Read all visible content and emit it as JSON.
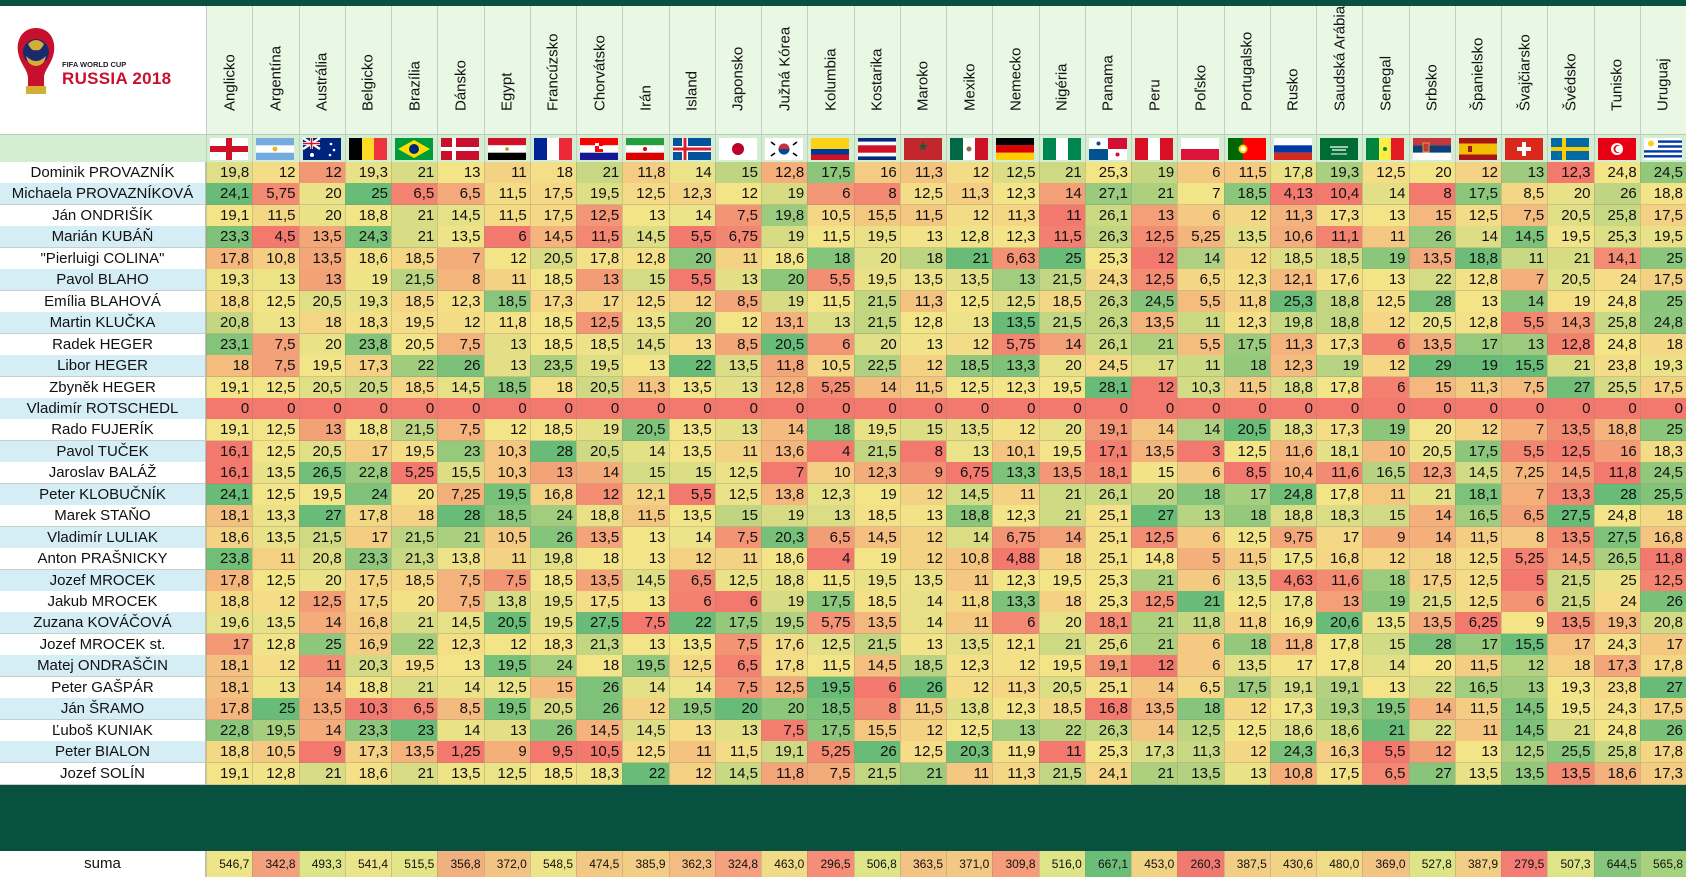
{
  "logo": {
    "line1": "FIFA WORLD CUP",
    "line2": "RUSSIA 2018"
  },
  "teams": [
    {
      "name": "Anglicko",
      "flag": "england-flag"
    },
    {
      "name": "Argentína",
      "flag": "argentina-flag"
    },
    {
      "name": "Austrália",
      "flag": "australia-flag"
    },
    {
      "name": "Belgicko",
      "flag": "belgium-flag"
    },
    {
      "name": "Brazília",
      "flag": "brazil-flag"
    },
    {
      "name": "Dánsko",
      "flag": "denmark-flag"
    },
    {
      "name": "Egypt",
      "flag": "egypt-flag"
    },
    {
      "name": "Francúzsko",
      "flag": "france-flag"
    },
    {
      "name": "Chorvátsko",
      "flag": "croatia-flag"
    },
    {
      "name": "Irán",
      "flag": "iran-flag"
    },
    {
      "name": "Island",
      "flag": "iceland-flag"
    },
    {
      "name": "Japonsko",
      "flag": "japan-flag"
    },
    {
      "name": "Južná Kórea",
      "flag": "south-korea-flag"
    },
    {
      "name": "Kolumbia",
      "flag": "colombia-flag"
    },
    {
      "name": "Kostarika",
      "flag": "costa-rica-flag"
    },
    {
      "name": "Maroko",
      "flag": "morocco-flag"
    },
    {
      "name": "Mexiko",
      "flag": "mexico-flag"
    },
    {
      "name": "Nemecko",
      "flag": "germany-flag"
    },
    {
      "name": "Nigéria",
      "flag": "nigeria-flag"
    },
    {
      "name": "Panama",
      "flag": "panama-flag"
    },
    {
      "name": "Peru",
      "flag": "peru-flag"
    },
    {
      "name": "Poľsko",
      "flag": "poland-flag"
    },
    {
      "name": "Portugalsko",
      "flag": "portugal-flag"
    },
    {
      "name": "Rusko",
      "flag": "russia-flag"
    },
    {
      "name": "Saudská Arábia",
      "flag": "saudi-arabia-flag"
    },
    {
      "name": "Senegal",
      "flag": "senegal-flag"
    },
    {
      "name": "Srbsko",
      "flag": "serbia-flag"
    },
    {
      "name": "Španielsko",
      "flag": "spain-flag"
    },
    {
      "name": "Švajčiarsko",
      "flag": "switzerland-flag"
    },
    {
      "name": "Švédsko",
      "flag": "sweden-flag"
    },
    {
      "name": "Tunisko",
      "flag": "tunisia-flag"
    },
    {
      "name": "Uruguaj",
      "flag": "uruguay-flag"
    }
  ],
  "rows": [
    {
      "name": "Dominik PROVAZNÍK",
      "values": [
        "19,8",
        "12",
        "12",
        "19,3",
        "21",
        "13",
        "11",
        "18",
        "21",
        "11,8",
        "14",
        "15",
        "12,8",
        "17,5",
        "16",
        "11,3",
        "12",
        "12,5",
        "21",
        "25,3",
        "19",
        "6",
        "11,5",
        "17,8",
        "19,3",
        "12,5",
        "20",
        "12",
        "13",
        "12,3",
        "24,8",
        "24,5"
      ]
    },
    {
      "name": "Michaela PROVAZNÍKOVÁ",
      "values": [
        "24,1",
        "5,75",
        "20",
        "25",
        "6,5",
        "6,5",
        "11,5",
        "17,5",
        "19,5",
        "12,5",
        "12,3",
        "12",
        "19",
        "6",
        "8",
        "12,5",
        "11,3",
        "12,3",
        "14",
        "27,1",
        "21",
        "7",
        "18,5",
        "4,13",
        "10,4",
        "14",
        "8",
        "17,5",
        "8,5",
        "20",
        "26",
        "18,8"
      ]
    },
    {
      "name": "Ján ONDRIŠÍK",
      "values": [
        "19,1",
        "11,5",
        "20",
        "18,8",
        "21",
        "14,5",
        "11,5",
        "17,5",
        "12,5",
        "13",
        "14",
        "7,5",
        "19,8",
        "10,5",
        "15,5",
        "11,5",
        "12",
        "11,3",
        "11",
        "26,1",
        "13",
        "6",
        "12",
        "11,3",
        "17,3",
        "13",
        "15",
        "12,5",
        "7,5",
        "20,5",
        "25,8",
        "17,5"
      ]
    },
    {
      "name": "Marián KUBÁŇ",
      "values": [
        "23,3",
        "4,5",
        "13,5",
        "24,3",
        "21",
        "13,5",
        "6",
        "14,5",
        "11,5",
        "14,5",
        "5,5",
        "6,75",
        "19",
        "11,5",
        "19,5",
        "13",
        "12,8",
        "12,3",
        "11,5",
        "26,3",
        "12,5",
        "5,25",
        "13,5",
        "10,6",
        "11,1",
        "11",
        "26",
        "14",
        "14,5",
        "19,5",
        "25,3",
        "19,5"
      ]
    },
    {
      "name": "\"Pierluigi COLINA\"",
      "values": [
        "17,8",
        "10,8",
        "13,5",
        "18,6",
        "18,5",
        "7",
        "12",
        "20,5",
        "17,8",
        "12,8",
        "20",
        "11",
        "18,6",
        "18",
        "20",
        "18",
        "21",
        "6,63",
        "25",
        "25,3",
        "12",
        "14",
        "12",
        "18,5",
        "18,5",
        "19",
        "13,5",
        "18,8",
        "11",
        "21",
        "14,1",
        "25"
      ]
    },
    {
      "name": "Pavol BLAHO",
      "values": [
        "19,3",
        "13",
        "13",
        "19",
        "21,5",
        "8",
        "11",
        "18,5",
        "13",
        "15",
        "5,5",
        "13",
        "20",
        "5,5",
        "19,5",
        "13,5",
        "13,5",
        "13",
        "21,5",
        "24,3",
        "12,5",
        "6,5",
        "12,3",
        "12,1",
        "17,6",
        "13",
        "22",
        "12,8",
        "7",
        "20,5",
        "24",
        "17,5"
      ]
    },
    {
      "name": "Emília BLAHOVÁ",
      "values": [
        "18,8",
        "12,5",
        "20,5",
        "19,3",
        "18,5",
        "12,3",
        "18,5",
        "17,3",
        "17",
        "12,5",
        "12",
        "8,5",
        "19",
        "11,5",
        "21,5",
        "11,3",
        "12,5",
        "12,5",
        "18,5",
        "26,3",
        "24,5",
        "5,5",
        "11,8",
        "25,3",
        "18,8",
        "12,5",
        "28",
        "13",
        "14",
        "19",
        "24,8",
        "25"
      ]
    },
    {
      "name": "Martin KLUČKA",
      "values": [
        "20,8",
        "13",
        "18",
        "18,3",
        "19,5",
        "12",
        "11,8",
        "18,5",
        "12,5",
        "13,5",
        "20",
        "12",
        "13,1",
        "13",
        "21,5",
        "12,8",
        "13",
        "13,5",
        "21,5",
        "26,3",
        "13,5",
        "11",
        "12,3",
        "19,8",
        "18,8",
        "12",
        "20,5",
        "12,8",
        "5,5",
        "14,3",
        "25,8",
        "24,8"
      ]
    },
    {
      "name": "Radek HEGER",
      "values": [
        "23,1",
        "7,5",
        "20",
        "23,8",
        "20,5",
        "7,5",
        "13",
        "18,5",
        "18,5",
        "14,5",
        "13",
        "8,5",
        "20,5",
        "6",
        "20",
        "13",
        "12",
        "5,75",
        "14",
        "26,1",
        "21",
        "5,5",
        "17,5",
        "11,3",
        "17,3",
        "6",
        "13,5",
        "17",
        "13",
        "12,8",
        "24,8",
        "18"
      ]
    },
    {
      "name": "Libor HEGER",
      "values": [
        "18",
        "7,5",
        "19,5",
        "17,3",
        "22",
        "26",
        "13",
        "23,5",
        "19,5",
        "13",
        "22",
        "13,5",
        "11,8",
        "10,5",
        "22,5",
        "12",
        "18,5",
        "13,3",
        "20",
        "24,5",
        "17",
        "11",
        "18",
        "12,3",
        "19",
        "12",
        "29",
        "19",
        "15,5",
        "21",
        "23,8",
        "19,3"
      ]
    },
    {
      "name": "Zbyněk HEGER",
      "values": [
        "19,1",
        "12,5",
        "20,5",
        "20,5",
        "18,5",
        "14,5",
        "18,5",
        "18",
        "20,5",
        "11,3",
        "13,5",
        "13",
        "12,8",
        "5,25",
        "14",
        "11,5",
        "12,5",
        "12,3",
        "19,5",
        "28,1",
        "12",
        "10,3",
        "11,5",
        "18,8",
        "17,8",
        "6",
        "15",
        "11,3",
        "7,5",
        "27",
        "25,5",
        "17,5"
      ]
    },
    {
      "name": "Vladimír ROTSCHEDL",
      "values": [
        "0",
        "0",
        "0",
        "0",
        "0",
        "0",
        "0",
        "0",
        "0",
        "0",
        "0",
        "0",
        "0",
        "0",
        "0",
        "0",
        "0",
        "0",
        "0",
        "0",
        "0",
        "0",
        "0",
        "0",
        "0",
        "0",
        "0",
        "0",
        "0",
        "0",
        "0",
        "0"
      ]
    },
    {
      "name": "Rado FUJERÍK",
      "values": [
        "19,1",
        "12,5",
        "13",
        "18,8",
        "21,5",
        "7,5",
        "12",
        "18,5",
        "19",
        "20,5",
        "13,5",
        "13",
        "14",
        "18",
        "19,5",
        "15",
        "13,5",
        "12",
        "20",
        "19,1",
        "14",
        "14",
        "20,5",
        "18,3",
        "17,3",
        "19",
        "20",
        "12",
        "7",
        "13,5",
        "18,8",
        "25"
      ]
    },
    {
      "name": "Pavol TUČEK",
      "values": [
        "16,1",
        "12,5",
        "20,5",
        "17",
        "19,5",
        "23",
        "10,3",
        "28",
        "20,5",
        "14",
        "13,5",
        "11",
        "13,6",
        "4",
        "21,5",
        "8",
        "13",
        "10,1",
        "19,5",
        "17,1",
        "13,5",
        "3",
        "12,5",
        "11,6",
        "18,1",
        "10",
        "20,5",
        "17,5",
        "5,5",
        "12,5",
        "16",
        "18,3"
      ]
    },
    {
      "name": "Jaroslav BALÁŽ",
      "values": [
        "16,1",
        "13,5",
        "26,5",
        "22,8",
        "5,25",
        "15,5",
        "10,3",
        "13",
        "14",
        "15",
        "15",
        "12,5",
        "7",
        "10",
        "12,3",
        "9",
        "6,75",
        "13,3",
        "13,5",
        "18,1",
        "15",
        "6",
        "8,5",
        "10,4",
        "11,6",
        "16,5",
        "12,3",
        "14,5",
        "7,25",
        "14,5",
        "11,8",
        "24,5"
      ]
    },
    {
      "name": "Peter KLOBUČNÍK",
      "values": [
        "24,1",
        "12,5",
        "19,5",
        "24",
        "20",
        "7,25",
        "19,5",
        "16,8",
        "12",
        "12,1",
        "5,5",
        "12,5",
        "13,8",
        "12,3",
        "19",
        "12",
        "14,5",
        "11",
        "21",
        "26,1",
        "20",
        "18",
        "17",
        "24,8",
        "17,8",
        "11",
        "21",
        "18,1",
        "7",
        "13,3",
        "28",
        "25,5"
      ]
    },
    {
      "name": "Marek STAŇO",
      "values": [
        "18,1",
        "13,3",
        "27",
        "17,8",
        "18",
        "28",
        "18,5",
        "24",
        "18,8",
        "11,5",
        "13,5",
        "15",
        "19",
        "13",
        "18,5",
        "13",
        "18,8",
        "12,3",
        "21",
        "25,1",
        "27",
        "13",
        "18",
        "18,8",
        "18,3",
        "15",
        "14",
        "16,5",
        "6,5",
        "27,5",
        "24,8",
        "18"
      ]
    },
    {
      "name": "Vladimír LULIAK",
      "values": [
        "18,6",
        "13,5",
        "21,5",
        "17",
        "21,5",
        "21",
        "10,5",
        "26",
        "13,5",
        "13",
        "14",
        "7,5",
        "20,3",
        "6,5",
        "14,5",
        "12",
        "14",
        "6,75",
        "14",
        "25,1",
        "12,5",
        "6",
        "12,5",
        "9,75",
        "17",
        "9",
        "14",
        "11,5",
        "8",
        "13,5",
        "27,5",
        "16,8"
      ]
    },
    {
      "name": "Anton PRAŠNICKY",
      "values": [
        "23,8",
        "11",
        "20,8",
        "23,3",
        "21,3",
        "13,8",
        "11",
        "19,8",
        "18",
        "13",
        "12",
        "11",
        "18,6",
        "4",
        "19",
        "12",
        "10,8",
        "4,88",
        "18",
        "25,1",
        "14,8",
        "5",
        "11,5",
        "17,5",
        "16,8",
        "12",
        "18",
        "12,5",
        "5,25",
        "14,5",
        "26,5",
        "11,8"
      ]
    },
    {
      "name": "Jozef MROCEK",
      "values": [
        "17,8",
        "12,5",
        "20",
        "17,5",
        "18,5",
        "7,5",
        "7,5",
        "18,5",
        "13,5",
        "14,5",
        "6,5",
        "12,5",
        "18,8",
        "11,5",
        "19,5",
        "13,5",
        "11",
        "12,3",
        "19,5",
        "25,3",
        "21",
        "6",
        "13,5",
        "4,63",
        "11,6",
        "18",
        "17,5",
        "12,5",
        "5",
        "21,5",
        "25",
        "12,5"
      ]
    },
    {
      "name": "Jakub MROCEK",
      "values": [
        "18,8",
        "12",
        "12,5",
        "17,5",
        "20",
        "7,5",
        "13,8",
        "19,5",
        "17,5",
        "13",
        "6",
        "6",
        "19",
        "17,5",
        "18,5",
        "14",
        "11,8",
        "13,3",
        "18",
        "25,3",
        "12,5",
        "21",
        "12,5",
        "17,8",
        "13",
        "19",
        "21,5",
        "12,5",
        "6",
        "21,5",
        "24",
        "26"
      ]
    },
    {
      "name": "Zuzana KOVÁČOVÁ",
      "values": [
        "19,6",
        "13,5",
        "14",
        "16,8",
        "21",
        "14,5",
        "20,5",
        "19,5",
        "27,5",
        "7,5",
        "22",
        "17,5",
        "19,5",
        "5,75",
        "13,5",
        "14",
        "11",
        "6",
        "20",
        "18,1",
        "21",
        "11,8",
        "11,8",
        "16,9",
        "20,6",
        "13,5",
        "13,5",
        "6,25",
        "9",
        "13,5",
        "19,3",
        "20,8"
      ]
    },
    {
      "name": "Jozef MROCEK st.",
      "values": [
        "17",
        "12,8",
        "25",
        "16,9",
        "22",
        "12,3",
        "12",
        "18,3",
        "21,3",
        "13",
        "13,5",
        "7,5",
        "17,6",
        "12,5",
        "21,5",
        "13",
        "13,5",
        "12,1",
        "21",
        "25,6",
        "21",
        "6",
        "18",
        "11,8",
        "17,8",
        "15",
        "28",
        "17",
        "15,5",
        "17",
        "24,3",
        "17"
      ]
    },
    {
      "name": "Matej ONDRAŠČIN",
      "values": [
        "18,1",
        "12",
        "11",
        "20,3",
        "19,5",
        "13",
        "19,5",
        "24",
        "18",
        "19,5",
        "12,5",
        "6,5",
        "17,8",
        "11,5",
        "14,5",
        "18,5",
        "12,3",
        "12",
        "19,5",
        "19,1",
        "12",
        "6",
        "13,5",
        "17",
        "17,8",
        "14",
        "20",
        "11,5",
        "12",
        "18",
        "17,3",
        "17,8"
      ]
    },
    {
      "name": "Peter GAŠPÁR",
      "values": [
        "18,1",
        "13",
        "14",
        "18,8",
        "21",
        "14",
        "12,5",
        "15",
        "26",
        "14",
        "14",
        "7,5",
        "12,5",
        "19,5",
        "6",
        "26",
        "12",
        "11,3",
        "20,5",
        "25,1",
        "14",
        "6,5",
        "17,5",
        "19,1",
        "19,1",
        "13",
        "22",
        "16,5",
        "13",
        "19,3",
        "23,8",
        "27"
      ]
    },
    {
      "name": "Ján ŠRAMO",
      "values": [
        "17,8",
        "25",
        "13,5",
        "10,3",
        "6,5",
        "8,5",
        "19,5",
        "20,5",
        "26",
        "12",
        "19,5",
        "20",
        "20",
        "18,5",
        "8",
        "11,5",
        "13,8",
        "12,3",
        "18,5",
        "16,8",
        "13,5",
        "18",
        "12",
        "17,3",
        "19,3",
        "19,5",
        "14",
        "11,5",
        "14,5",
        "19,5",
        "24,3",
        "17,5"
      ]
    },
    {
      "name": "Ľuboš KUNIAK",
      "values": [
        "22,8",
        "19,5",
        "14",
        "23,3",
        "23",
        "14",
        "13",
        "26",
        "14,5",
        "14,5",
        "13",
        "13",
        "7,5",
        "17,5",
        "15,5",
        "12",
        "12,5",
        "13",
        "22",
        "26,3",
        "14",
        "12,5",
        "12,5",
        "18,6",
        "18,6",
        "21",
        "22",
        "11",
        "14,5",
        "21",
        "24,8",
        "26"
      ]
    },
    {
      "name": "Peter BIALON",
      "values": [
        "18,8",
        "10,5",
        "9",
        "17,3",
        "13,5",
        "1,25",
        "9",
        "9,5",
        "10,5",
        "12,5",
        "11",
        "11,5",
        "19,1",
        "5,25",
        "26",
        "12,5",
        "20,3",
        "11,9",
        "11",
        "25,3",
        "17,3",
        "11,3",
        "12",
        "24,3",
        "16,3",
        "5,5",
        "12",
        "13",
        "12,5",
        "25,5",
        "25,8",
        "17,8"
      ]
    },
    {
      "name": "Jozef SOLÍN",
      "values": [
        "19,1",
        "12,8",
        "21",
        "18,6",
        "21",
        "13,5",
        "12,5",
        "18,5",
        "18,3",
        "22",
        "12",
        "14,5",
        "11,8",
        "7,5",
        "21,5",
        "21",
        "11",
        "11,3",
        "21,5",
        "24,1",
        "21",
        "13,5",
        "13",
        "10,8",
        "17,5",
        "6,5",
        "27",
        "13,5",
        "13,5",
        "13,5",
        "18,6",
        "17,3"
      ]
    }
  ],
  "sum": {
    "label": "suma",
    "values": [
      "546,7",
      "342,8",
      "493,3",
      "541,4",
      "515,5",
      "356,8",
      "372,0",
      "548,5",
      "474,5",
      "385,9",
      "362,3",
      "324,8",
      "463,0",
      "296,5",
      "506,8",
      "363,5",
      "371,0",
      "309,8",
      "516,0",
      "667,1",
      "453,0",
      "260,3",
      "387,5",
      "430,6",
      "480,0",
      "369,0",
      "527,8",
      "387,9",
      "279,5",
      "507,3",
      "644,5",
      "565,8"
    ],
    "colors": [
      "#eee48a",
      "#f3a07e",
      "#dde588",
      "#ece48a",
      "#e4e489",
      "#f1b07f",
      "#f2c383",
      "#ece48a",
      "#f2c884",
      "#f2cd85",
      "#f2bd82",
      "#f5a07e",
      "#f0dc88",
      "#f58d78",
      "#e0e489",
      "#f2c383",
      "#f2c884",
      "#f59c7b",
      "#dde588",
      "#6bbd78",
      "#f2d386",
      "#f07a72",
      "#f2cd85",
      "#f2d386",
      "#f0db87",
      "#f2c383",
      "#dde588",
      "#f2cd85",
      "#f37c74",
      "#e0e489",
      "#86c57b",
      "#a6d27e"
    ]
  },
  "colors": {
    "background": "#08503f",
    "odd_row_name": "#ffffff",
    "even_row_name": "#d5edf5",
    "header_cell": "#e9f8e4",
    "flag_row": "#d4eed2"
  }
}
